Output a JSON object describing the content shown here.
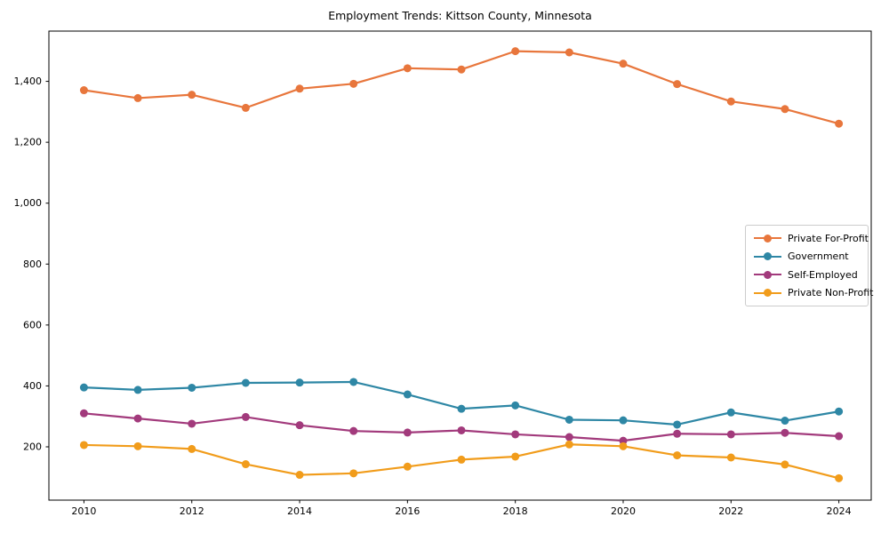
{
  "figure": {
    "background_color": "#ffffff",
    "spine_color": "#000000",
    "tick_label_color": "#000000"
  },
  "chart_data": {
    "type": "line",
    "title": "Employment Trends: Kittson County, Minnesota",
    "xlabel": "",
    "ylabel": "",
    "x": [
      2010,
      2011,
      2012,
      2013,
      2014,
      2015,
      2016,
      2017,
      2018,
      2019,
      2020,
      2021,
      2022,
      2023,
      2024
    ],
    "series": [
      {
        "name": "Private For-Profit",
        "color": "#e8763c",
        "values": [
          1371,
          1345,
          1356,
          1313,
          1376,
          1392,
          1443,
          1439,
          1499,
          1495,
          1458,
          1391,
          1334,
          1309,
          1261
        ]
      },
      {
        "name": "Government",
        "color": "#2e87a5",
        "values": [
          395,
          387,
          394,
          410,
          411,
          413,
          372,
          325,
          336,
          289,
          287,
          273,
          313,
          286,
          316
        ]
      },
      {
        "name": "Self-Employed",
        "color": "#a23a7c",
        "values": [
          310,
          293,
          276,
          298,
          271,
          252,
          247,
          254,
          241,
          232,
          220,
          243,
          241,
          246,
          235
        ]
      },
      {
        "name": "Private Non-Profit",
        "color": "#f19c1b",
        "values": [
          206,
          202,
          193,
          143,
          108,
          113,
          135,
          158,
          168,
          208,
          202,
          172,
          165,
          142,
          97
        ]
      }
    ],
    "xticks": [
      2010,
      2012,
      2014,
      2016,
      2018,
      2020,
      2022,
      2024
    ],
    "xtick_labels": [
      "2010",
      "2012",
      "2014",
      "2016",
      "2018",
      "2020",
      "2022",
      "2024"
    ],
    "yticks": [
      200,
      400,
      600,
      800,
      1000,
      1200,
      1400
    ],
    "ytick_labels": [
      "200",
      "400",
      "600",
      "800",
      "1,000",
      "1,200",
      "1,400"
    ],
    "xlim": [
      2009.35,
      2024.6
    ],
    "ylim": [
      25,
      1565
    ],
    "grid": false,
    "legend_position": "center-right",
    "marker": "circle",
    "marker_radius": 4.5,
    "line_width": 2.2
  }
}
